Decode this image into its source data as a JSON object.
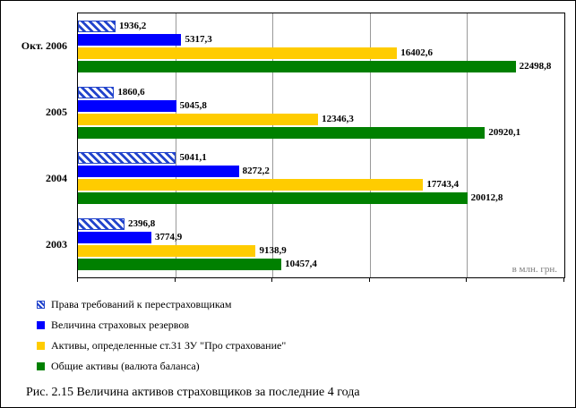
{
  "window": {
    "background": "#FFFFFF",
    "border_color": "#000000"
  },
  "chart_data": {
    "type": "bar",
    "orientation": "horizontal",
    "title": "",
    "xlabel": "",
    "ylabel": "",
    "unit_note": "в млн. грн.",
    "xlim": [
      0,
      25000
    ],
    "grid_interval": 5000,
    "grid_on": true,
    "legend_position": "bottom-left",
    "categories": [
      "Окт. 2006",
      "2005",
      "2004",
      "2003"
    ],
    "series": [
      {
        "name": "Права требований к перестраховщикам",
        "style": "hatched",
        "color": "#2244CC",
        "values": [
          1936.2,
          1860.6,
          5041.1,
          2396.8
        ],
        "value_labels": [
          "1936,2",
          "1860,6",
          "5041,1",
          "2396,8"
        ]
      },
      {
        "name": "Величина страховых резервов",
        "style": "solid-blue",
        "color": "#0000FF",
        "values": [
          5317.3,
          5045.8,
          8272.2,
          3774.9
        ],
        "value_labels": [
          "5317,3",
          "5045,8",
          "8272,2",
          "3774,9"
        ]
      },
      {
        "name": "Активы, определенные ст.31 ЗУ \"Про страхование\"",
        "style": "solid-yellow",
        "color": "#FFCC00",
        "values": [
          16402.6,
          12346.3,
          17743.4,
          9138.9
        ],
        "value_labels": [
          "16402,6",
          "12346,3",
          "17743,4",
          "9138,9"
        ]
      },
      {
        "name": "Общие активы (валюта баланса)",
        "style": "solid-green",
        "color": "#008000",
        "values": [
          22498.8,
          20920.1,
          20012.8,
          10457.4
        ],
        "value_labels": [
          "22498,8",
          "20920,1",
          "20012,8",
          "10457,4"
        ]
      }
    ],
    "caption": "Рис. 2.15 Величина активов страховщиков за последние 4 года"
  }
}
